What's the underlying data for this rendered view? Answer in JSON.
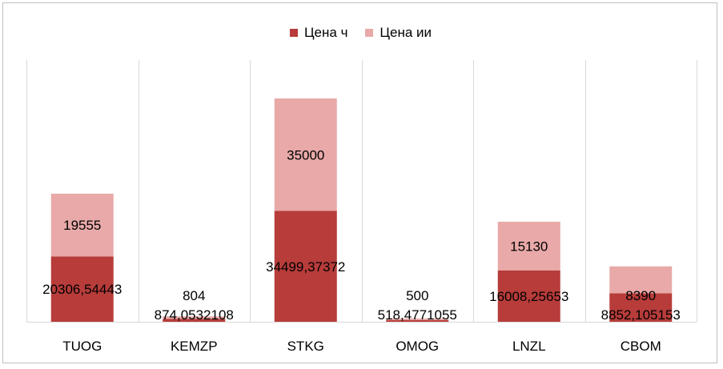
{
  "chart_data": {
    "type": "bar",
    "stacked": true,
    "categories": [
      "TUOG",
      "KEMZP",
      "STKG",
      "OMOG",
      "LNZL",
      "CBOM"
    ],
    "series": [
      {
        "name": "Цена ч",
        "color": "#b73c3a",
        "values": [
          20306.54443,
          874.0532108,
          34499.37372,
          518.4771055,
          16008.25653,
          8852.105153
        ],
        "labels": [
          "20306,54443",
          "874,0532108",
          "34499,37372",
          "518,4771055",
          "16008,25653",
          "8852,105153"
        ]
      },
      {
        "name": "Цена ии",
        "color": "#e8a9a8",
        "values": [
          19555,
          804,
          35000,
          500,
          15130,
          8390
        ],
        "labels": [
          "19555",
          "804",
          "35000",
          "500",
          "15130",
          "8390"
        ]
      }
    ],
    "legend_position": "top",
    "grid": "vertical category separators"
  }
}
